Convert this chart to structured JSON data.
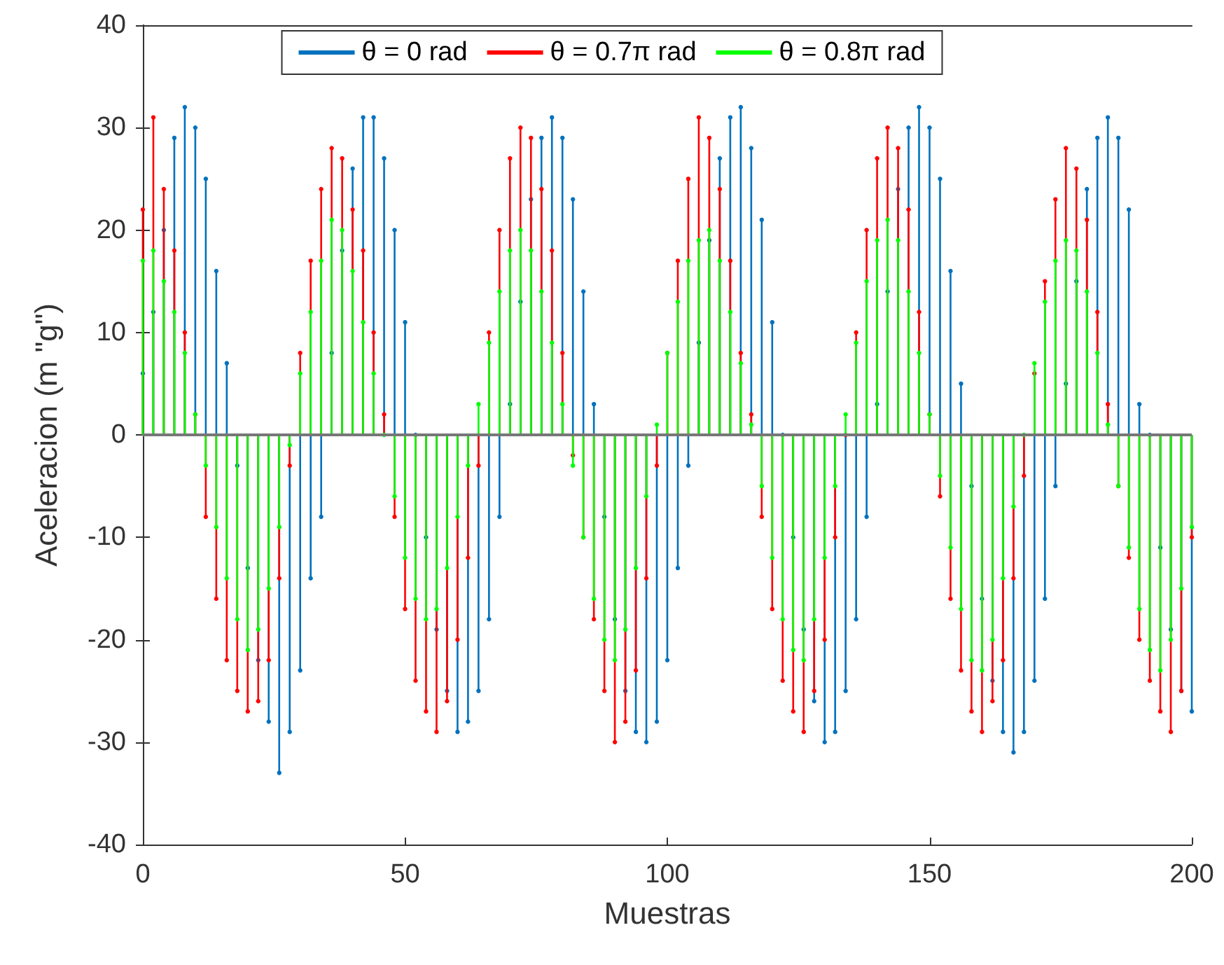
{
  "chart_data": {
    "type": "lollipop",
    "xlabel": "Muestras",
    "ylabel": "Aceleracion (m \"g\")",
    "xlim": [
      0,
      200
    ],
    "xticks": [
      0,
      50,
      100,
      150,
      200
    ],
    "ylim": [
      -40,
      40
    ],
    "yticks": [
      -40,
      -30,
      -20,
      -10,
      0,
      10,
      20,
      30,
      40
    ],
    "legend": "top",
    "marker": "circle",
    "x": [
      0,
      2,
      4,
      6,
      8,
      10,
      12,
      14,
      16,
      18,
      20,
      22,
      24,
      26,
      28,
      30,
      32,
      34,
      36,
      38,
      40,
      42,
      44,
      46,
      48,
      50,
      52,
      54,
      56,
      58,
      60,
      62,
      64,
      66,
      68,
      70,
      72,
      74,
      76,
      78,
      80,
      82,
      84,
      86,
      88,
      90,
      92,
      94,
      96,
      98,
      100,
      102,
      104,
      106,
      108,
      110,
      112,
      114,
      116,
      118,
      120,
      122,
      124,
      126,
      128,
      130,
      132,
      134,
      136,
      138,
      140,
      142,
      144,
      146,
      148,
      150,
      152,
      154,
      156,
      158,
      160,
      162,
      164,
      166,
      168,
      170,
      172,
      174,
      176,
      178,
      180,
      182,
      184,
      186,
      188,
      190,
      192,
      194,
      196,
      198,
      200
    ],
    "series": [
      {
        "name": "θ = 0 rad",
        "color": "#0072bd",
        "values": [
          6,
          12,
          20,
          29,
          32,
          30,
          25,
          16,
          7,
          -3,
          -13,
          -22,
          -28,
          -33,
          -29,
          -23,
          -14,
          -8,
          8,
          18,
          26,
          31,
          31,
          27,
          20,
          11,
          0,
          -10,
          -19,
          -25,
          -29,
          -28,
          -25,
          -18,
          -8,
          3,
          13,
          23,
          29,
          31,
          29,
          23,
          14,
          3,
          -8,
          -18,
          -25,
          -29,
          -30,
          -28,
          -22,
          -13,
          -3,
          9,
          19,
          27,
          31,
          32,
          28,
          21,
          11,
          0,
          -10,
          -19,
          -26,
          -30,
          -29,
          -25,
          -18,
          -8,
          3,
          14,
          24,
          30,
          32,
          30,
          25,
          16,
          5,
          -5,
          -16,
          -24,
          -29,
          -31,
          -29,
          -24,
          -16,
          -5,
          5,
          15,
          24,
          29,
          31,
          29,
          22,
          3,
          0,
          -11,
          -19,
          -25,
          -27
        ]
      },
      {
        "name": "θ = 0.7π rad",
        "color": "#ff0000",
        "values": [
          22,
          31,
          24,
          18,
          10,
          2,
          -8,
          -16,
          -22,
          -25,
          -27,
          -26,
          -22,
          -14,
          -3,
          8,
          17,
          24,
          28,
          27,
          22,
          18,
          10,
          2,
          -8,
          -17,
          -24,
          -27,
          -29,
          -26,
          -20,
          -12,
          -3,
          10,
          20,
          27,
          30,
          29,
          24,
          18,
          8,
          -2,
          -10,
          -18,
          -25,
          -30,
          -28,
          -23,
          -14,
          -3,
          8,
          17,
          25,
          31,
          29,
          24,
          17,
          8,
          2,
          -8,
          -17,
          -24,
          -27,
          -29,
          -25,
          -20,
          -10,
          0,
          10,
          20,
          27,
          30,
          28,
          22,
          12,
          2,
          -6,
          -16,
          -23,
          -27,
          -29,
          -26,
          -22,
          -14,
          -4,
          6,
          15,
          23,
          28,
          26,
          21,
          12,
          3,
          -5,
          -12,
          -20,
          -24,
          -27,
          -29,
          -25,
          -10
        ]
      },
      {
        "name": "θ = 0.8π rad",
        "color": "#00ff00",
        "values": [
          17,
          18,
          15,
          12,
          8,
          2,
          -3,
          -9,
          -14,
          -18,
          -21,
          -19,
          -15,
          -9,
          -1,
          6,
          12,
          17,
          21,
          20,
          16,
          11,
          6,
          0,
          -6,
          -12,
          -16,
          -18,
          -17,
          -13,
          -8,
          -3,
          3,
          9,
          14,
          18,
          20,
          18,
          14,
          9,
          3,
          -3,
          -10,
          -16,
          -20,
          -22,
          -19,
          -13,
          -6,
          1,
          8,
          13,
          17,
          19,
          20,
          17,
          12,
          7,
          1,
          -5,
          -12,
          -18,
          -21,
          -22,
          -18,
          -12,
          -5,
          2,
          9,
          15,
          19,
          21,
          19,
          14,
          8,
          2,
          -4,
          -11,
          -17,
          -22,
          -23,
          -20,
          -14,
          -7,
          0,
          7,
          13,
          17,
          19,
          18,
          14,
          8,
          1,
          -5,
          -11,
          -17,
          -21,
          -23,
          -20,
          -15,
          -9
        ]
      }
    ]
  }
}
